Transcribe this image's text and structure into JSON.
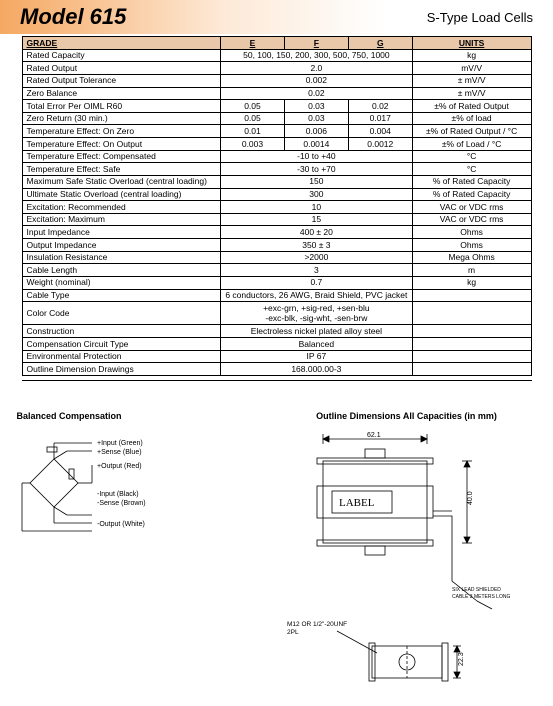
{
  "header": {
    "model": "Model 615",
    "subtitle": "S-Type Load Cells"
  },
  "table": {
    "headers": {
      "grade": "GRADE",
      "e": "E",
      "f": "F",
      "g": "G",
      "units": "UNITS"
    },
    "rows": [
      {
        "label": "Rated Capacity",
        "span": "50, 100, 150, 200, 300, 500, 750, 1000",
        "units": "kg"
      },
      {
        "label": "Rated Output",
        "span": "2.0",
        "units": "mV/V"
      },
      {
        "label": "Rated Output Tolerance",
        "span": "0.002",
        "units": "± mV/V"
      },
      {
        "label": "Zero Balance",
        "span": "0.02",
        "units": "± mV/V"
      },
      {
        "label": "Total Error Per OIML R60",
        "e": "0.05",
        "f": "0.03",
        "g": "0.02",
        "units": "±% of Rated Output"
      },
      {
        "label": "Zero Return (30 min.)",
        "e": "0.05",
        "f": "0.03",
        "g": "0.017",
        "units": "±% of load"
      },
      {
        "label": "Temperature Effect: On Zero",
        "e": "0.01",
        "f": "0.006",
        "g": "0.004",
        "units": "±% of Rated Output / °C"
      },
      {
        "label": "Temperature Effect: On Output",
        "e": "0.003",
        "f": "0.0014",
        "g": "0.0012",
        "units": "±% of Load / °C"
      },
      {
        "label": "Temperature Effect: Compensated",
        "span": "-10 to +40",
        "units": "°C"
      },
      {
        "label": "Temperature Effect: Safe",
        "span": "-30 to +70",
        "units": "°C"
      },
      {
        "label": "Maximum Safe Static Overload (central loading)",
        "span": "150",
        "units": "% of Rated Capacity"
      },
      {
        "label": "Ultimate Static Overload (central loading)",
        "span": "300",
        "units": "% of Rated Capacity"
      },
      {
        "label": "Excitation: Recommended",
        "span": "10",
        "units": "VAC or VDC rms"
      },
      {
        "label": "Excitation: Maximum",
        "span": "15",
        "units": "VAC or VDC rms"
      },
      {
        "label": "Input Impedance",
        "span": "400 ± 20",
        "units": "Ohms"
      },
      {
        "label": "Output Impedance",
        "span": "350 ± 3",
        "units": "Ohms"
      },
      {
        "label": "Insulation Resistance",
        "span": ">2000",
        "units": "Mega Ohms"
      },
      {
        "label": "Cable Length",
        "span": "3",
        "units": "m"
      },
      {
        "label": "Weight (nominal)",
        "span": "0.7",
        "units": "kg"
      },
      {
        "label": "Cable Type",
        "span": "6 conductors, 26 AWG, Braid Shield, PVC jacket",
        "units": ""
      },
      {
        "label": "Color Code",
        "span": "+exc-grn, +sig-red, +sen-blu\n-exc-blk, -sig-wht, -sen-brw",
        "units": ""
      },
      {
        "label": "Construction",
        "span": "Electroless nickel plated alloy steel",
        "units": ""
      },
      {
        "label": "Compensation Circuit Type",
        "span": "Balanced",
        "units": ""
      },
      {
        "label": "Environmental Protection",
        "span": "IP 67",
        "units": ""
      },
      {
        "label": "Outline Dimension Drawings",
        "span": "168.000.00-3",
        "units": ""
      }
    ]
  },
  "compensation": {
    "title": "Balanced Compensation",
    "wires": [
      "+Input (Green)",
      "+Sense (Blue)",
      "+Output (Red)",
      "-Input (Black)",
      "-Sense (Brown)",
      "-Output (White)"
    ]
  },
  "outline": {
    "title": "Outline Dimensions All Capacities (in mm)",
    "dims": {
      "width": "62.1",
      "height": "40.0",
      "depth": "22.3"
    },
    "label_text": "LABEL",
    "thread": "M12 OR 1/2\"-20UNF",
    "thread2": "2PL",
    "cable_note1": "SIX LEAD SHIELDED",
    "cable_note2": "CABLE 3 METERS LONG"
  },
  "colors": {
    "header_grad_start": "#f5a862",
    "header_grad_end": "#ffffff",
    "table_header_bg": "#e8c8a8",
    "border": "#000000",
    "text": "#000000"
  }
}
